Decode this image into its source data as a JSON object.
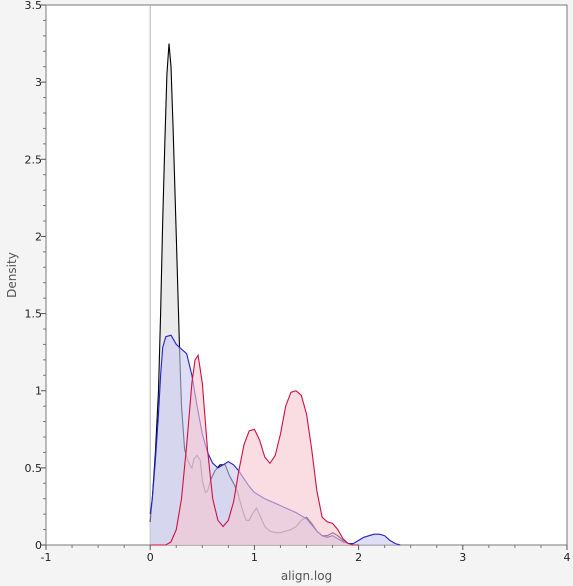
{
  "chart_data": {
    "type": "area",
    "xlabel": "align.log",
    "ylabel": "Density",
    "xlim": [
      -1,
      4
    ],
    "ylim": [
      0,
      3.5
    ],
    "x_ticks": [
      "-1",
      "0",
      "1",
      "2",
      "3",
      "4"
    ],
    "y_ticks": [
      "0",
      "0.5",
      "1",
      "1.5",
      "2",
      "2.5",
      "3",
      "3.5"
    ],
    "x_tick_values": [
      -1,
      0,
      1,
      2,
      3,
      4
    ],
    "y_tick_values": [
      0,
      0.5,
      1,
      1.5,
      2,
      2.5,
      3,
      3.5
    ],
    "reference_line_x": 0,
    "series": [
      {
        "color": "#000000",
        "fill": "#dcdcdc",
        "points": [
          [
            0.0,
            0.15
          ],
          [
            0.02,
            0.3
          ],
          [
            0.05,
            0.6
          ],
          [
            0.08,
            1.0
          ],
          [
            0.1,
            1.5
          ],
          [
            0.12,
            2.1
          ],
          [
            0.14,
            2.6
          ],
          [
            0.16,
            3.05
          ],
          [
            0.18,
            3.25
          ],
          [
            0.2,
            3.1
          ],
          [
            0.22,
            2.7
          ],
          [
            0.25,
            2.0
          ],
          [
            0.28,
            1.3
          ],
          [
            0.3,
            0.9
          ],
          [
            0.33,
            0.62
          ],
          [
            0.36,
            0.55
          ],
          [
            0.38,
            0.52
          ],
          [
            0.4,
            0.5
          ],
          [
            0.42,
            0.56
          ],
          [
            0.45,
            0.58
          ],
          [
            0.48,
            0.55
          ],
          [
            0.5,
            0.42
          ],
          [
            0.53,
            0.34
          ],
          [
            0.55,
            0.35
          ],
          [
            0.58,
            0.42
          ],
          [
            0.62,
            0.48
          ],
          [
            0.67,
            0.52
          ],
          [
            0.72,
            0.52
          ],
          [
            0.76,
            0.45
          ],
          [
            0.8,
            0.4
          ],
          [
            0.84,
            0.34
          ],
          [
            0.88,
            0.24
          ],
          [
            0.92,
            0.16
          ],
          [
            0.95,
            0.16
          ],
          [
            0.98,
            0.2
          ],
          [
            1.02,
            0.24
          ],
          [
            1.06,
            0.18
          ],
          [
            1.1,
            0.12
          ],
          [
            1.15,
            0.09
          ],
          [
            1.2,
            0.08
          ],
          [
            1.25,
            0.08
          ],
          [
            1.3,
            0.09
          ],
          [
            1.35,
            0.1
          ],
          [
            1.4,
            0.12
          ],
          [
            1.45,
            0.16
          ],
          [
            1.5,
            0.18
          ],
          [
            1.55,
            0.14
          ],
          [
            1.6,
            0.09
          ],
          [
            1.65,
            0.06
          ],
          [
            1.7,
            0.06
          ],
          [
            1.75,
            0.08
          ],
          [
            1.8,
            0.06
          ],
          [
            1.85,
            0.03
          ],
          [
            1.9,
            0.01
          ],
          [
            1.95,
            0.0
          ],
          [
            2.0,
            0.0
          ]
        ]
      },
      {
        "color": "#2222cc",
        "fill": "#c8c8f0",
        "points": [
          [
            0.0,
            0.2
          ],
          [
            0.02,
            0.3
          ],
          [
            0.05,
            0.55
          ],
          [
            0.08,
            0.85
          ],
          [
            0.1,
            1.1
          ],
          [
            0.12,
            1.28
          ],
          [
            0.15,
            1.35
          ],
          [
            0.2,
            1.36
          ],
          [
            0.25,
            1.3
          ],
          [
            0.3,
            1.27
          ],
          [
            0.35,
            1.24
          ],
          [
            0.4,
            1.1
          ],
          [
            0.45,
            0.9
          ],
          [
            0.5,
            0.72
          ],
          [
            0.55,
            0.6
          ],
          [
            0.6,
            0.53
          ],
          [
            0.65,
            0.5
          ],
          [
            0.7,
            0.52
          ],
          [
            0.75,
            0.54
          ],
          [
            0.8,
            0.52
          ],
          [
            0.85,
            0.48
          ],
          [
            0.9,
            0.43
          ],
          [
            0.95,
            0.38
          ],
          [
            1.0,
            0.34
          ],
          [
            1.1,
            0.3
          ],
          [
            1.2,
            0.27
          ],
          [
            1.3,
            0.24
          ],
          [
            1.4,
            0.21
          ],
          [
            1.5,
            0.17
          ],
          [
            1.55,
            0.13
          ],
          [
            1.6,
            0.09
          ],
          [
            1.65,
            0.06
          ],
          [
            1.7,
            0.05
          ],
          [
            1.75,
            0.06
          ],
          [
            1.8,
            0.04
          ],
          [
            1.85,
            0.02
          ],
          [
            1.9,
            0.01
          ],
          [
            1.95,
            0.01
          ],
          [
            2.0,
            0.03
          ],
          [
            2.05,
            0.05
          ],
          [
            2.1,
            0.06
          ],
          [
            2.15,
            0.07
          ],
          [
            2.2,
            0.07
          ],
          [
            2.25,
            0.06
          ],
          [
            2.3,
            0.03
          ],
          [
            2.35,
            0.01
          ],
          [
            2.4,
            0.0
          ]
        ]
      },
      {
        "color": "#cc1144",
        "fill": "#f5c6d0",
        "points": [
          [
            0.0,
            0.0
          ],
          [
            0.15,
            0.0
          ],
          [
            0.2,
            0.02
          ],
          [
            0.25,
            0.1
          ],
          [
            0.3,
            0.3
          ],
          [
            0.35,
            0.65
          ],
          [
            0.4,
            1.05
          ],
          [
            0.43,
            1.2
          ],
          [
            0.46,
            1.23
          ],
          [
            0.5,
            1.05
          ],
          [
            0.55,
            0.62
          ],
          [
            0.6,
            0.3
          ],
          [
            0.65,
            0.16
          ],
          [
            0.7,
            0.12
          ],
          [
            0.75,
            0.16
          ],
          [
            0.8,
            0.28
          ],
          [
            0.85,
            0.48
          ],
          [
            0.9,
            0.65
          ],
          [
            0.95,
            0.74
          ],
          [
            1.0,
            0.75
          ],
          [
            1.05,
            0.68
          ],
          [
            1.1,
            0.57
          ],
          [
            1.15,
            0.53
          ],
          [
            1.2,
            0.58
          ],
          [
            1.25,
            0.72
          ],
          [
            1.3,
            0.9
          ],
          [
            1.35,
            0.99
          ],
          [
            1.4,
            1.0
          ],
          [
            1.45,
            0.97
          ],
          [
            1.5,
            0.85
          ],
          [
            1.55,
            0.62
          ],
          [
            1.6,
            0.35
          ],
          [
            1.65,
            0.18
          ],
          [
            1.7,
            0.15
          ],
          [
            1.75,
            0.14
          ],
          [
            1.8,
            0.1
          ],
          [
            1.85,
            0.04
          ],
          [
            1.9,
            0.01
          ],
          [
            1.95,
            0.0
          ],
          [
            2.0,
            0.0
          ]
        ]
      }
    ]
  }
}
